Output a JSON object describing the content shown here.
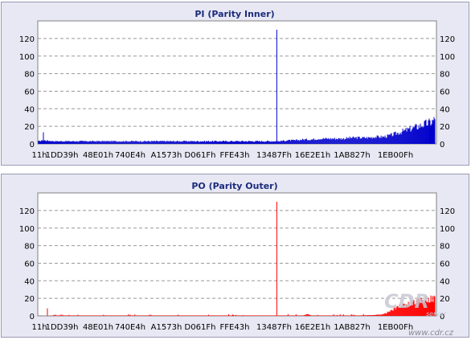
{
  "chart_data": [
    {
      "type": "area",
      "title": "PI (Parity Inner)",
      "series": [
        {
          "values": []
        }
      ],
      "color": "#0000cc",
      "ylim": [
        0,
        130
      ],
      "yticks": [
        0,
        20,
        40,
        60,
        80,
        100,
        120
      ],
      "xticklabels": [
        "11h",
        "1DD39h",
        "48E01h",
        "740E4h",
        "A1573h",
        "D061Fh",
        "FFE43h",
        "13487Fh",
        "16E2E1h",
        "1AB827h",
        "1EB00Fh"
      ],
      "profile": [
        [
          0,
          3
        ],
        [
          5,
          4
        ],
        [
          6,
          14
        ],
        [
          7,
          4
        ],
        [
          20,
          3
        ],
        [
          40,
          3
        ],
        [
          60,
          3
        ],
        [
          80,
          3
        ],
        [
          100,
          3
        ],
        [
          120,
          3
        ],
        [
          140,
          3
        ],
        [
          160,
          3
        ],
        [
          180,
          3
        ],
        [
          200,
          3
        ],
        [
          220,
          3
        ],
        [
          240,
          3
        ],
        [
          260,
          3
        ],
        [
          280,
          3
        ],
        [
          300,
          3
        ],
        [
          310,
          4
        ],
        [
          320,
          4
        ],
        [
          330,
          5
        ],
        [
          340,
          5
        ],
        [
          350,
          6
        ],
        [
          360,
          6
        ],
        [
          370,
          6
        ],
        [
          380,
          6
        ],
        [
          390,
          7
        ],
        [
          400,
          7
        ],
        [
          410,
          7
        ],
        [
          420,
          8
        ],
        [
          430,
          8
        ],
        [
          440,
          10
        ],
        [
          450,
          13
        ],
        [
          460,
          16
        ],
        [
          470,
          19
        ],
        [
          480,
          22
        ],
        [
          490,
          25
        ],
        [
          494,
          28
        ]
      ],
      "spike": {
        "x": 297,
        "value": 130
      }
    },
    {
      "type": "area",
      "title": "PO (Parity Outer)",
      "series": [
        {
          "values": []
        }
      ],
      "color": "#ff0000",
      "ylim": [
        0,
        130
      ],
      "yticks": [
        0,
        20,
        40,
        60,
        80,
        100,
        120
      ],
      "xticklabels": [
        "11h",
        "1DD39h",
        "48E01h",
        "740E4h",
        "A1573h",
        "D061Fh",
        "FFE43h",
        "13487Fh",
        "16E2E1h",
        "1AB827h",
        "1EB00Fh"
      ],
      "profile": [
        [
          0,
          0
        ],
        [
          10,
          0
        ],
        [
          11,
          10
        ],
        [
          12,
          0
        ],
        [
          20,
          0.5
        ],
        [
          100,
          0.5
        ],
        [
          200,
          0.5
        ],
        [
          330,
          0.5
        ],
        [
          335,
          2
        ],
        [
          340,
          0.5
        ],
        [
          400,
          0.5
        ],
        [
          420,
          1
        ],
        [
          430,
          2
        ],
        [
          440,
          6
        ],
        [
          450,
          11
        ],
        [
          460,
          14
        ],
        [
          470,
          16
        ],
        [
          480,
          18
        ],
        [
          494,
          20
        ]
      ],
      "spike": {
        "x": 297,
        "value": 130
      }
    }
  ],
  "watermark": {
    "brand": "CDR",
    "sub": "server",
    "url": "www.cdr.cz"
  }
}
